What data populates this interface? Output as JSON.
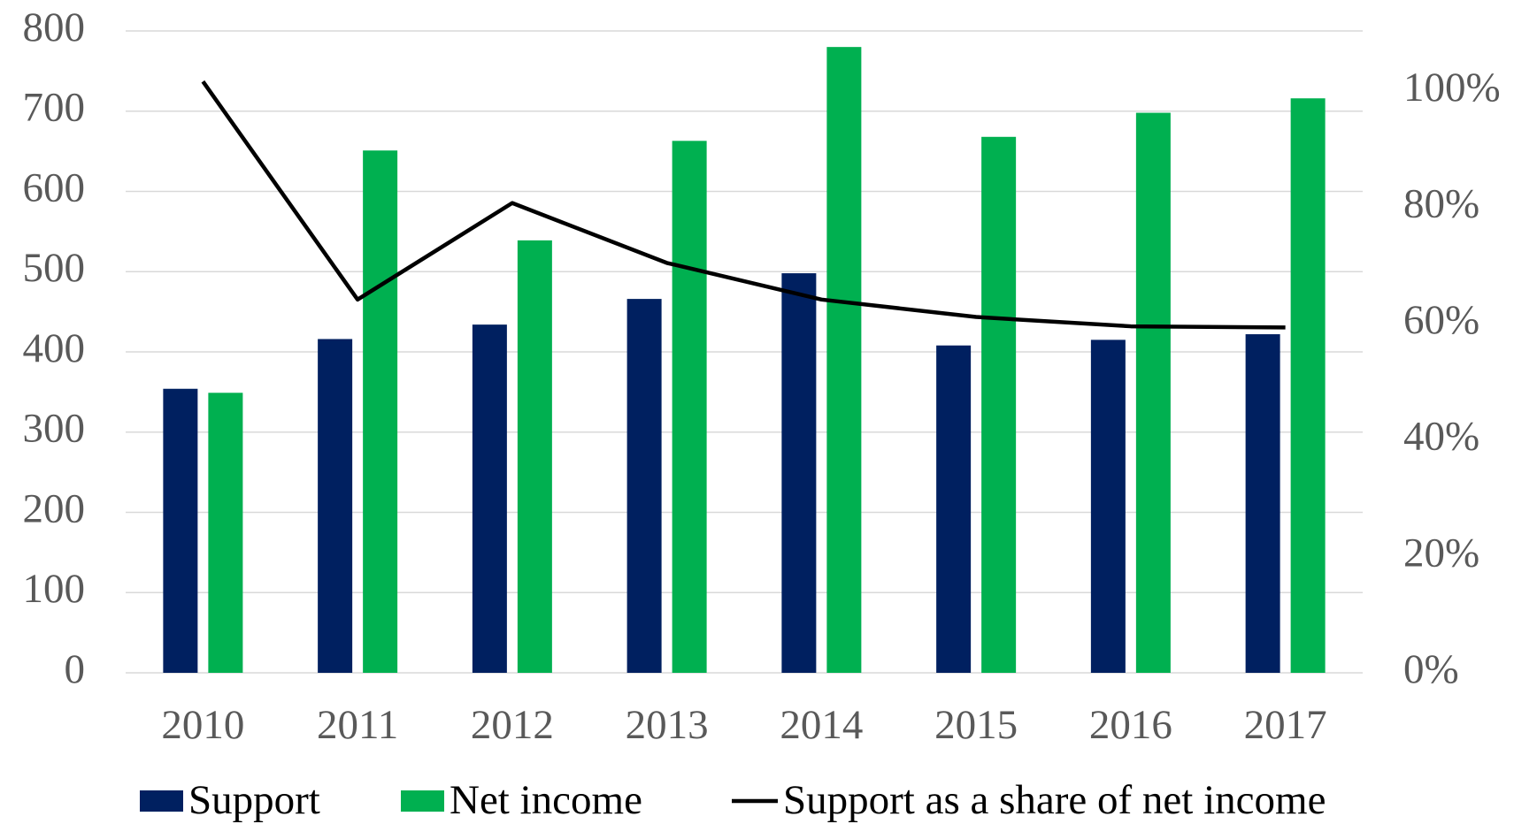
{
  "chart_data": {
    "type": "bar",
    "categories": [
      "2010",
      "2011",
      "2012",
      "2013",
      "2014",
      "2015",
      "2016",
      "2017"
    ],
    "series": [
      {
        "name": "Support",
        "color": "#002060",
        "values": [
          354,
          416,
          434,
          466,
          498,
          408,
          415,
          422
        ]
      },
      {
        "name": "Net income",
        "color": "#00b050",
        "values": [
          349,
          651,
          539,
          663,
          780,
          668,
          698,
          716
        ]
      },
      {
        "name": "Support as a share of net income",
        "color": "#000000",
        "type": "line",
        "axis": "y2",
        "values": [
          101.7,
          64.2,
          80.8,
          70.5,
          64.2,
          61.2,
          59.6,
          59.4
        ]
      }
    ],
    "ylim": [
      0,
      800
    ],
    "yticks": [
      0,
      100,
      200,
      300,
      400,
      500,
      600,
      700,
      800
    ],
    "y2lim": [
      0,
      110.4
    ],
    "y2ticks": [
      {
        "value": 0,
        "label": "0%"
      },
      {
        "value": 20,
        "label": "20%"
      },
      {
        "value": 40,
        "label": "40%"
      },
      {
        "value": 60,
        "label": "60%"
      },
      {
        "value": 80,
        "label": "80%"
      },
      {
        "value": 100,
        "label": "100%"
      }
    ],
    "grid": true,
    "legend": "bottom"
  }
}
